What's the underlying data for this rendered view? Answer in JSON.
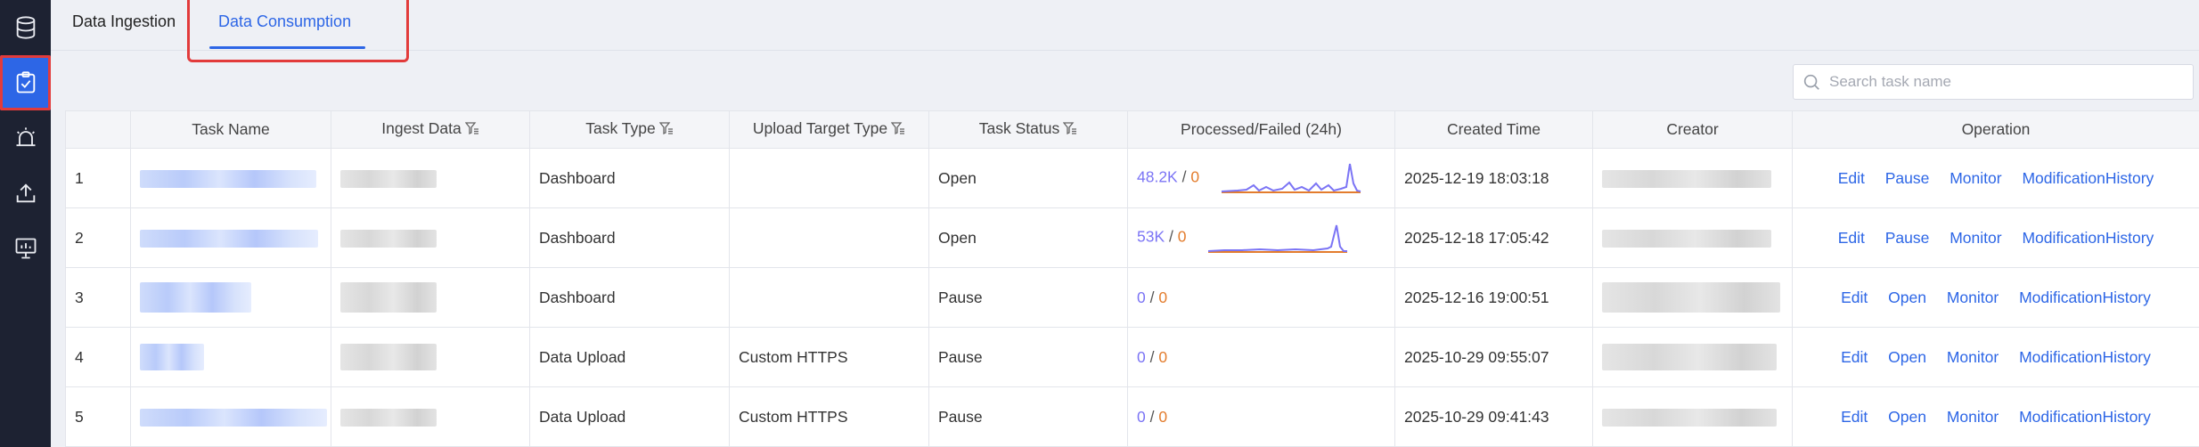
{
  "sidebar": {
    "items": [
      {
        "icon": "database-icon",
        "active": false
      },
      {
        "icon": "clipboard-check-icon",
        "active": true
      },
      {
        "icon": "alarm-bell-icon",
        "active": false
      },
      {
        "icon": "upload-icon",
        "active": false
      },
      {
        "icon": "monitor-chart-icon",
        "active": false
      }
    ]
  },
  "tabs": {
    "ingestion": "Data Ingestion",
    "consumption": "Data Consumption",
    "active": "consumption"
  },
  "search": {
    "placeholder": "Search task name",
    "value": ""
  },
  "table": {
    "headers": {
      "index": "",
      "task_name": "Task Name",
      "ingest_data": "Ingest Data",
      "task_type": "Task Type",
      "upload_target_type": "Upload Target Type",
      "task_status": "Task Status",
      "processed_failed": "Processed/Failed (24h)",
      "created_time": "Created Time",
      "creator": "Creator",
      "operation": "Operation"
    },
    "rows": [
      {
        "index": "1",
        "task_type": "Dashboard",
        "upload_target_type": "",
        "task_status": "Open",
        "processed": "48.2K",
        "separator": "/",
        "failed": "0",
        "created_time": "2025-12-19 18:03:18",
        "ops": [
          "Edit",
          "Pause",
          "Monitor",
          "ModificationHistory"
        ]
      },
      {
        "index": "2",
        "task_type": "Dashboard",
        "upload_target_type": "",
        "task_status": "Open",
        "processed": "53K",
        "separator": "/",
        "failed": "0",
        "created_time": "2025-12-18 17:05:42",
        "ops": [
          "Edit",
          "Pause",
          "Monitor",
          "ModificationHistory"
        ]
      },
      {
        "index": "3",
        "task_type": "Dashboard",
        "upload_target_type": "",
        "task_status": "Pause",
        "processed": "0",
        "separator": "/",
        "failed": "0",
        "created_time": "2025-12-16 19:00:51",
        "ops": [
          "Edit",
          "Open",
          "Monitor",
          "ModificationHistory"
        ]
      },
      {
        "index": "4",
        "task_type": "Data Upload",
        "upload_target_type": "Custom HTTPS",
        "task_status": "Pause",
        "processed": "0",
        "separator": "/",
        "failed": "0",
        "created_time": "2025-10-29 09:55:07",
        "ops": [
          "Edit",
          "Open",
          "Monitor",
          "ModificationHistory"
        ]
      },
      {
        "index": "5",
        "task_type": "Data Upload",
        "upload_target_type": "Custom HTTPS",
        "task_status": "Pause",
        "processed": "0",
        "separator": "/",
        "failed": "0",
        "created_time": "2025-10-29 09:41:43",
        "ops": [
          "Edit",
          "Open",
          "Monitor",
          "ModificationHistory"
        ]
      }
    ]
  },
  "colors": {
    "accent": "#2d66e6",
    "highlight_border": "#e23b3b",
    "processed": "#7b74f5",
    "failed": "#e37c2d",
    "sidebar_bg": "#1d2232"
  }
}
